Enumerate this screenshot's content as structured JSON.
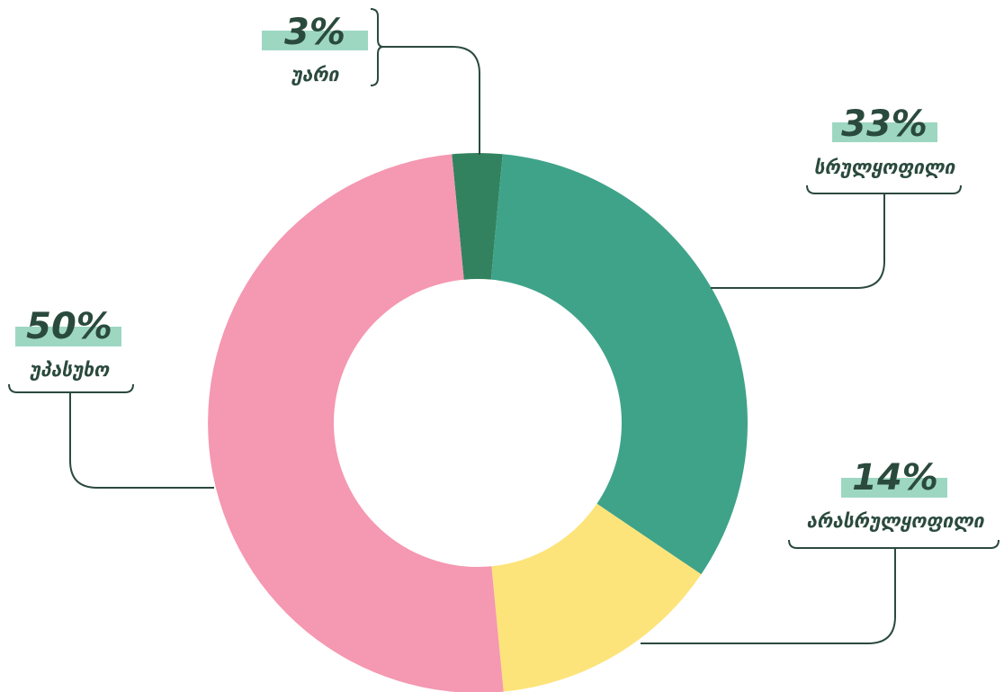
{
  "chart_data": {
    "type": "donut",
    "categories": [
      "უარი",
      "სრულყოფილი",
      "არასრულყოფილი",
      "უპასუხო"
    ],
    "values": [
      3,
      33,
      14,
      50
    ],
    "value_labels": [
      "3%",
      "33%",
      "14%",
      "50%"
    ],
    "colors": [
      "#33825f",
      "#3fa389",
      "#fde47a",
      "#f598b2"
    ]
  }
}
